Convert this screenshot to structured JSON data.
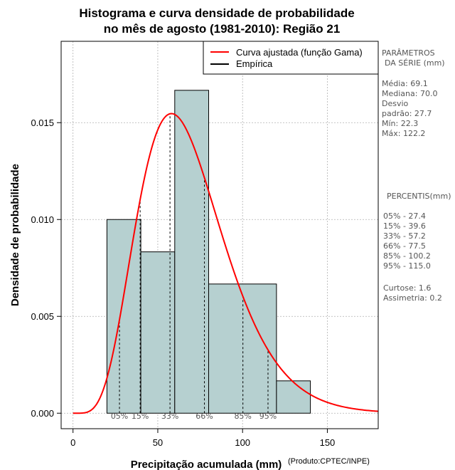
{
  "chart_data": {
    "type": "histogram",
    "title_line1": "Histograma e curva densidade de probabilidade",
    "title_line2": "no mês de agosto (1981-2010): Região 21",
    "xlabel": "Precipitação acumulada (mm)",
    "credit": "(Produto:CPTEC/INPE)",
    "ylabel": "Densidade de probabilidade",
    "xlim": [
      -7,
      180
    ],
    "ylim": [
      -0.0008,
      0.0192
    ],
    "x_ticks": [
      0,
      50,
      100,
      150
    ],
    "x_tick_labels": [
      "0",
      "50",
      "100",
      "150"
    ],
    "y_ticks": [
      0.0,
      0.005,
      0.01,
      0.015
    ],
    "y_tick_labels": [
      "0.000",
      "0.005",
      "0.010",
      "0.015"
    ],
    "grid": true,
    "bins": [
      {
        "x0": 20,
        "x1": 40,
        "density": 0.01
      },
      {
        "x0": 40,
        "x1": 60,
        "density": 0.00833
      },
      {
        "x0": 60,
        "x1": 80,
        "density": 0.01667
      },
      {
        "x0": 80,
        "x1": 120,
        "density": 0.00667
      },
      {
        "x0": 120,
        "x1": 140,
        "density": 0.00167
      }
    ],
    "gamma_fit": {
      "shape": 6.23,
      "scale": 11.1
    },
    "percentiles": [
      {
        "label": "05%",
        "value": 27.4
      },
      {
        "label": "15%",
        "value": 39.6
      },
      {
        "label": "33%",
        "value": 57.2
      },
      {
        "label": "66%",
        "value": 77.5
      },
      {
        "label": "85%",
        "value": 100.2
      },
      {
        "label": "95%",
        "value": 115.0
      }
    ],
    "legend": {
      "position": "top-right",
      "items": [
        {
          "label": "Curva ajustada (função Gama)",
          "color": "#ff0000"
        },
        {
          "label": "Empírica",
          "color": "#000000"
        }
      ]
    },
    "colors": {
      "bar_fill": "#b6d0d0",
      "curve": "#ff0000",
      "grid": "#b0b0b0"
    }
  },
  "side_panel": {
    "params_title1": "PARÂMETROS",
    "params_title2": "DA SÉRIE (mm)",
    "stats": [
      "Média:  69.1",
      "Mediana:  70.0",
      "Desvio",
      "padrão:  27.7",
      "Mín:  22.3",
      "Máx:  122.2"
    ],
    "percentis_title": "PERCENTIS(mm)",
    "percentis": [
      "05% -  27.4",
      "15% -  39.6",
      "33% -  57.2",
      "66% -  77.5",
      "85% -  100.2",
      "95% -  115.0"
    ],
    "curtose": "Curtose:  1.6",
    "assimetria": "Assimetria:  0.2"
  }
}
